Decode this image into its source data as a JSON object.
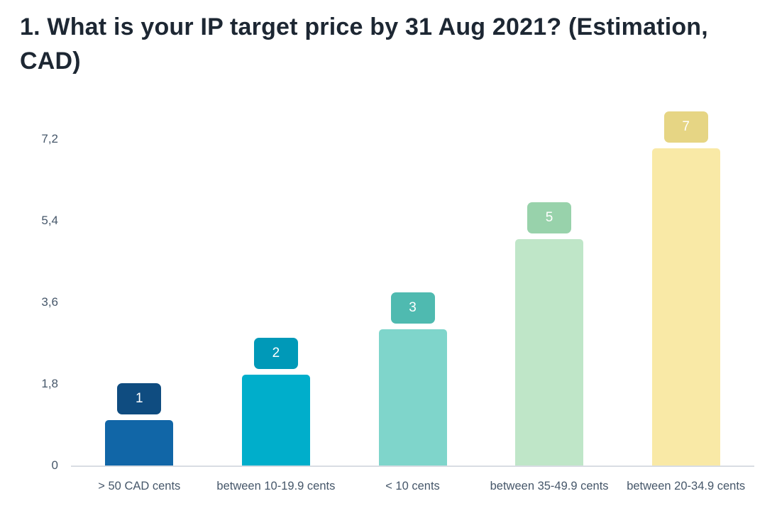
{
  "title": "1. What is your IP target price by 31 Aug 2021? (Estimation, CAD)",
  "chart_data": {
    "type": "bar",
    "title": "1. What is your IP target price by 31 Aug 2021? (Estimation, CAD)",
    "categories": [
      "> 50 CAD cents",
      "between 10-19.9 cents",
      "< 10 cents",
      "between 35-49.9 cents",
      "between 20-34.9 cents"
    ],
    "values": [
      1,
      2,
      3,
      5,
      7
    ],
    "xlabel": "",
    "ylabel": "",
    "ylim": [
      0,
      7.2
    ],
    "yticks": [
      0,
      1.8,
      3.6,
      5.4,
      7.2
    ],
    "ytick_labels": [
      "0",
      "1,8",
      "3,6",
      "5,4",
      "7,2"
    ],
    "grid": false,
    "legend": false,
    "bar_colors": [
      "#1166a7",
      "#00aecb",
      "#7fd5cb",
      "#bfe6c8",
      "#f9e9a6"
    ],
    "badge_colors": [
      "#0f4c80",
      "#0099b8",
      "#4fbab0",
      "#98d2ab",
      "#e6d584"
    ],
    "badge_text_color": "#ffffff"
  },
  "colors": {
    "title_text": "#1d2733",
    "axis_text": "#46576a",
    "axis_line": "#d9dde3",
    "background": "#ffffff"
  }
}
